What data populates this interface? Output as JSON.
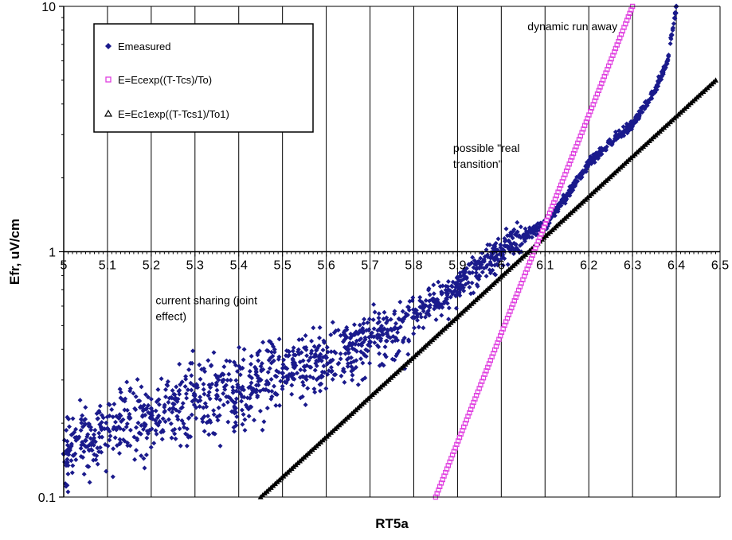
{
  "chart_data": {
    "type": "scatter",
    "xlabel": "RT5a",
    "ylabel": "Efr, uV/cm",
    "xlim": [
      5,
      6.5
    ],
    "ylim": [
      0.1,
      10
    ],
    "y_scale": "log",
    "x_tick_labels": [
      "5",
      "5.1",
      "5.2",
      "5.3",
      "5.4",
      "5.5",
      "5.6",
      "5.7",
      "5.8",
      "5.9",
      "6",
      "6.1",
      "6.2",
      "6.3",
      "6.4",
      "6.5"
    ],
    "y_tick_labels": [
      "0.1",
      "1",
      "10"
    ],
    "grid": "vertical major gridlines",
    "legend_position": "top-left",
    "colors": {
      "measured": "#1a1a8c",
      "fit1": "#e040e0",
      "fit2": "#000000"
    },
    "series": [
      {
        "name": "Emeasured",
        "marker": "diamond",
        "points": [
          [
            5.0,
            0.15
          ],
          [
            5.05,
            0.17
          ],
          [
            5.1,
            0.19
          ],
          [
            5.15,
            0.21
          ],
          [
            5.2,
            0.22
          ],
          [
            5.25,
            0.23
          ],
          [
            5.3,
            0.25
          ],
          [
            5.35,
            0.26
          ],
          [
            5.4,
            0.28
          ],
          [
            5.45,
            0.3
          ],
          [
            5.5,
            0.32
          ],
          [
            5.55,
            0.34
          ],
          [
            5.6,
            0.37
          ],
          [
            5.65,
            0.4
          ],
          [
            5.7,
            0.43
          ],
          [
            5.75,
            0.48
          ],
          [
            5.8,
            0.54
          ],
          [
            5.85,
            0.62
          ],
          [
            5.9,
            0.72
          ],
          [
            5.95,
            0.86
          ],
          [
            6.0,
            1.0
          ],
          [
            6.05,
            1.15
          ],
          [
            6.1,
            1.3
          ],
          [
            6.15,
            1.7
          ],
          [
            6.2,
            2.3
          ],
          [
            6.25,
            2.8
          ],
          [
            6.3,
            3.3
          ],
          [
            6.35,
            4.5
          ],
          [
            6.38,
            6.0
          ],
          [
            6.4,
            10.0
          ]
        ]
      },
      {
        "name": "E=Ecexp((T-Tcs)/To)",
        "marker": "square",
        "x_range": [
          5.85,
          6.3
        ],
        "y_range": [
          0.1,
          10
        ]
      },
      {
        "name": "E=Ec1exp((T-Tcs1)/To1)",
        "marker": "triangle",
        "x_range": [
          5.45,
          6.49
        ],
        "y_range": [
          0.1,
          5.0
        ]
      }
    ],
    "annotations": [
      {
        "lines": [
          "dynamic run away"
        ],
        "x": 6.06,
        "y": 8.0
      },
      {
        "lines": [
          "possible \"real",
          "transition\""
        ],
        "x": 5.89,
        "y": 2.55
      },
      {
        "lines": [
          "current sharing (joint",
          "effect)"
        ],
        "x": 5.21,
        "y": 0.61
      }
    ]
  }
}
